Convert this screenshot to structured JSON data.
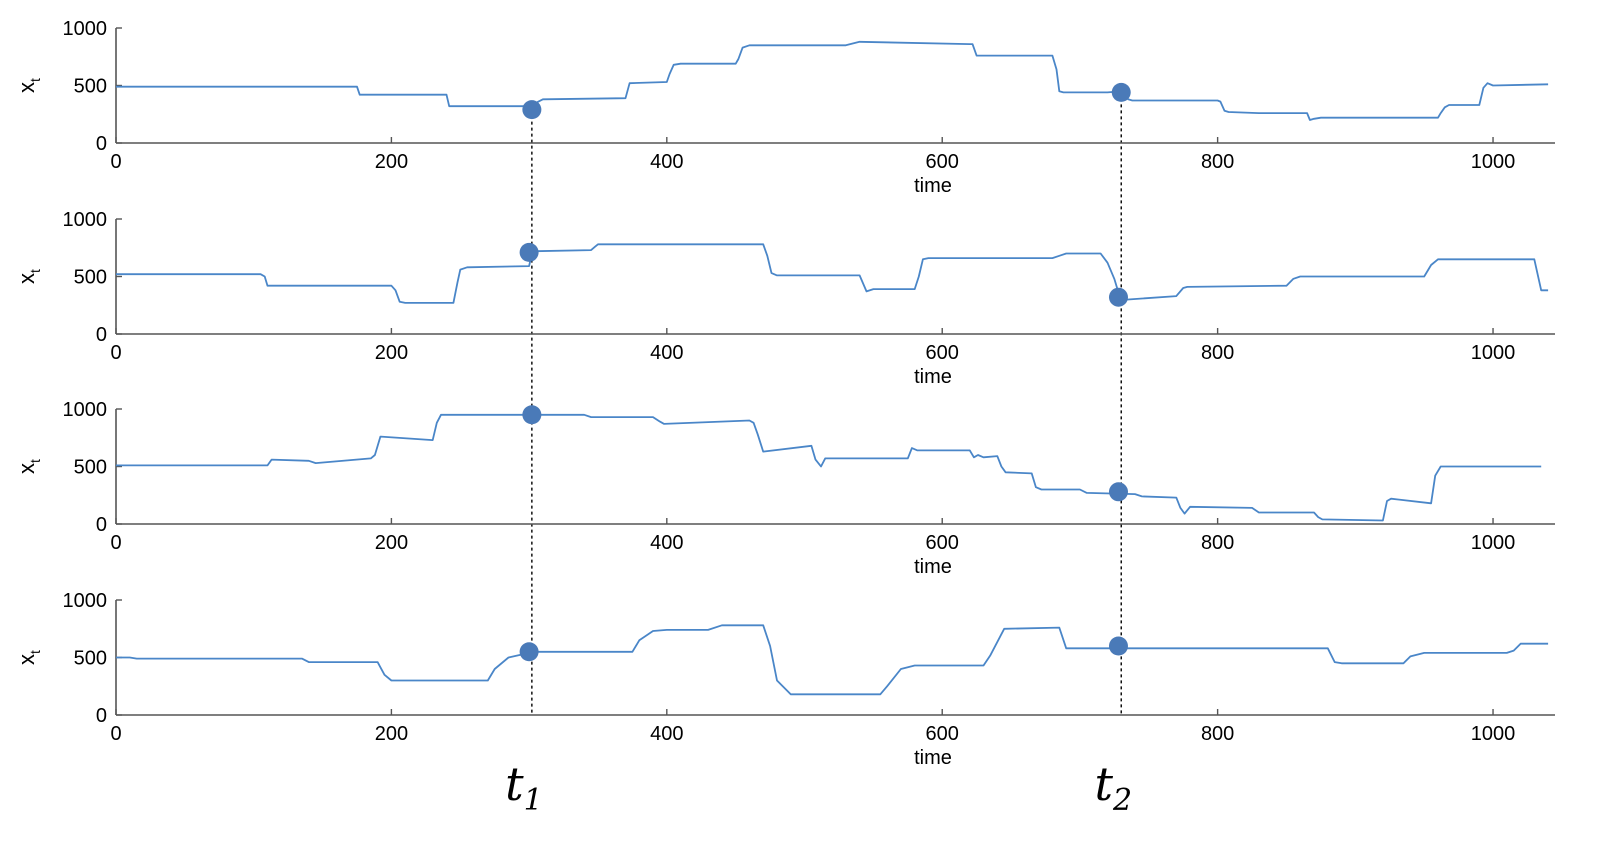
{
  "colors": {
    "line": "#4a86c8",
    "point": "#4a7ab8",
    "axis": "#555555",
    "guide": "#000000"
  },
  "chart_data": [
    {
      "type": "line",
      "xlabel": "time",
      "ylabel": "x_t",
      "xlim": [
        0,
        1045
      ],
      "ylim": [
        0,
        1000
      ],
      "xticks": [
        0,
        200,
        400,
        600,
        800,
        1000
      ],
      "yticks": [
        0,
        500,
        1000
      ],
      "grid": false,
      "series": [
        {
          "x": [
            0,
            175,
            177,
            240,
            242,
            300,
            302,
            305,
            310,
            370,
            373,
            400,
            402,
            405,
            410,
            450,
            452,
            455,
            460,
            530,
            540,
            620,
            622,
            625,
            630,
            680,
            683,
            685,
            688,
            720,
            730,
            733,
            735,
            738,
            800,
            802,
            805,
            808,
            830,
            865,
            867,
            870,
            875,
            960,
            962,
            965,
            968,
            990,
            993,
            996,
            1000,
            1040
          ],
          "y": [
            490,
            490,
            420,
            420,
            320,
            320,
            270,
            350,
            380,
            390,
            520,
            530,
            600,
            680,
            690,
            690,
            730,
            830,
            850,
            850,
            880,
            860,
            860,
            760,
            760,
            760,
            640,
            450,
            440,
            440,
            450,
            440,
            380,
            370,
            370,
            360,
            280,
            270,
            260,
            260,
            200,
            210,
            220,
            220,
            260,
            310,
            330,
            330,
            480,
            520,
            500,
            510
          ]
        }
      ],
      "points": [
        {
          "x": 302,
          "y": 290
        },
        {
          "x": 730,
          "y": 440
        }
      ],
      "point_labels": []
    },
    {
      "type": "line",
      "xlabel": "time",
      "ylabel": "x_t",
      "xlim": [
        0,
        1045
      ],
      "ylim": [
        0,
        1000
      ],
      "xticks": [
        0,
        200,
        400,
        600,
        800,
        1000
      ],
      "yticks": [
        0,
        500,
        1000
      ],
      "grid": false,
      "series": [
        {
          "x": [
            0,
            105,
            108,
            110,
            200,
            203,
            206,
            210,
            245,
            248,
            250,
            255,
            300,
            302,
            305,
            345,
            348,
            350,
            470,
            473,
            476,
            480,
            540,
            545,
            550,
            580,
            583,
            586,
            590,
            680,
            685,
            690,
            715,
            720,
            725,
            728,
            730,
            735,
            770,
            775,
            778,
            850,
            855,
            860,
            950,
            955,
            960,
            1030,
            1035,
            1040
          ],
          "y": [
            520,
            520,
            500,
            420,
            420,
            380,
            280,
            270,
            270,
            450,
            560,
            580,
            590,
            700,
            720,
            730,
            760,
            780,
            780,
            680,
            530,
            510,
            510,
            370,
            390,
            390,
            500,
            650,
            660,
            660,
            680,
            700,
            700,
            620,
            480,
            360,
            300,
            300,
            330,
            400,
            410,
            420,
            480,
            500,
            500,
            600,
            650,
            650,
            380,
            380
          ]
        }
      ],
      "points": [
        {
          "x": 300,
          "y": 710
        },
        {
          "x": 728,
          "y": 320
        }
      ],
      "point_labels": []
    },
    {
      "type": "line",
      "xlabel": "time",
      "ylabel": "x_t",
      "xlim": [
        0,
        1045
      ],
      "ylim": [
        0,
        1000
      ],
      "xticks": [
        0,
        200,
        400,
        600,
        800,
        1000
      ],
      "yticks": [
        0,
        500,
        1000
      ],
      "grid": false,
      "series": [
        {
          "x": [
            0,
            110,
            113,
            140,
            145,
            185,
            188,
            192,
            230,
            233,
            236,
            340,
            345,
            390,
            395,
            398,
            460,
            463,
            466,
            470,
            505,
            508,
            512,
            515,
            575,
            578,
            582,
            620,
            623,
            626,
            630,
            640,
            643,
            646,
            665,
            668,
            672,
            700,
            705,
            740,
            745,
            770,
            773,
            776,
            780,
            825,
            830,
            870,
            873,
            876,
            920,
            923,
            926,
            955,
            958,
            962,
            1035
          ],
          "y": [
            510,
            510,
            560,
            550,
            530,
            570,
            600,
            760,
            730,
            880,
            950,
            950,
            930,
            930,
            890,
            870,
            900,
            880,
            780,
            630,
            680,
            560,
            500,
            570,
            570,
            660,
            640,
            640,
            580,
            600,
            580,
            590,
            500,
            450,
            440,
            320,
            300,
            300,
            270,
            260,
            240,
            230,
            140,
            90,
            150,
            140,
            100,
            100,
            60,
            40,
            30,
            200,
            220,
            180,
            420,
            500,
            500
          ]
        }
      ],
      "points": [
        {
          "x": 302,
          "y": 950
        },
        {
          "x": 728,
          "y": 280
        }
      ],
      "point_labels": []
    },
    {
      "type": "line",
      "xlabel": "time",
      "ylabel": "x_t",
      "xlim": [
        0,
        1045
      ],
      "ylim": [
        0,
        1000
      ],
      "xticks": [
        0,
        200,
        400,
        600,
        800,
        1000
      ],
      "yticks": [
        0,
        500,
        1000
      ],
      "grid": false,
      "series": [
        {
          "x": [
            0,
            10,
            15,
            135,
            140,
            190,
            195,
            200,
            270,
            275,
            285,
            300,
            302,
            375,
            380,
            390,
            400,
            430,
            440,
            470,
            475,
            480,
            490,
            555,
            560,
            570,
            580,
            630,
            635,
            645,
            685,
            690,
            700,
            770,
            775,
            880,
            885,
            890,
            935,
            940,
            950,
            1010,
            1015,
            1020,
            1040
          ],
          "y": [
            500,
            500,
            490,
            490,
            460,
            460,
            350,
            300,
            300,
            400,
            500,
            540,
            550,
            550,
            650,
            730,
            740,
            740,
            780,
            780,
            600,
            300,
            180,
            180,
            250,
            400,
            430,
            430,
            520,
            750,
            760,
            580,
            580,
            580,
            580,
            580,
            460,
            450,
            450,
            510,
            540,
            540,
            560,
            620,
            620
          ]
        }
      ],
      "points": [
        {
          "x": 300,
          "y": 550
        },
        {
          "x": 728,
          "y": 600
        }
      ],
      "point_labels": [
        "t",
        "1",
        "t",
        "2"
      ]
    }
  ]
}
